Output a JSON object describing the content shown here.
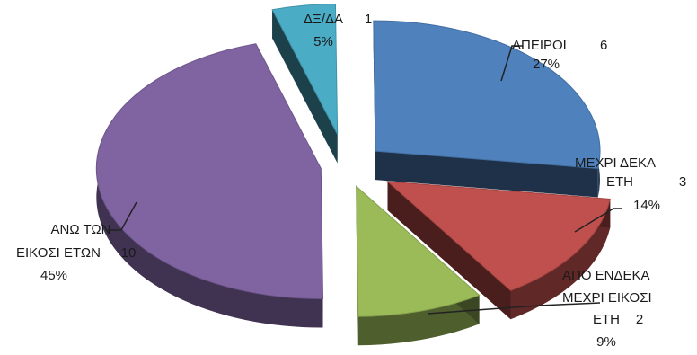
{
  "chart_data": {
    "type": "pie",
    "style": "3d-exploded",
    "legend": "none",
    "slices": [
      {
        "name": "ΑΠΕΙΡΟΙ",
        "name_lines": [
          "ΑΠΕΙΡΟΙ"
        ],
        "value": 6,
        "percent": "27%",
        "color": "#4F81BD"
      },
      {
        "name": "ΜΕΧΡΙ ΔΕΚΑ ΕΤΗ",
        "name_lines": [
          "ΜΕΧΡΙ ΔΕΚΑ",
          "ΕΤΗ"
        ],
        "value": 3,
        "percent": "14%",
        "color": "#C0504D"
      },
      {
        "name": "ΑΠΟ ΕΝΔΕΚΑ ΜΕΧΡΙ ΕΙΚΟΣΙ ΕΤΗ",
        "name_lines": [
          "ΑΠΟ ΕΝΔΕΚΑ",
          "ΜΕΧΡΙ ΕΙΚΟΣΙ",
          "ΕΤΗ"
        ],
        "value": 2,
        "percent": "9%",
        "color": "#9BBB59"
      },
      {
        "name": "ΑΝΩ ΤΩΝ ΕΙΚΟΣΙ ΕΤΩΝ",
        "name_lines": [
          "ΑΝΩ ΤΩΝ",
          "ΕΙΚΟΣΙ ΕΤΩΝ"
        ],
        "value": 10,
        "percent": "45%",
        "color": "#8064A2"
      },
      {
        "name": "ΔΞ/ΔΑ",
        "name_lines": [
          "ΔΞ/ΔΑ"
        ],
        "value": 1,
        "percent": "5%",
        "color": "#4BACC6"
      }
    ]
  }
}
